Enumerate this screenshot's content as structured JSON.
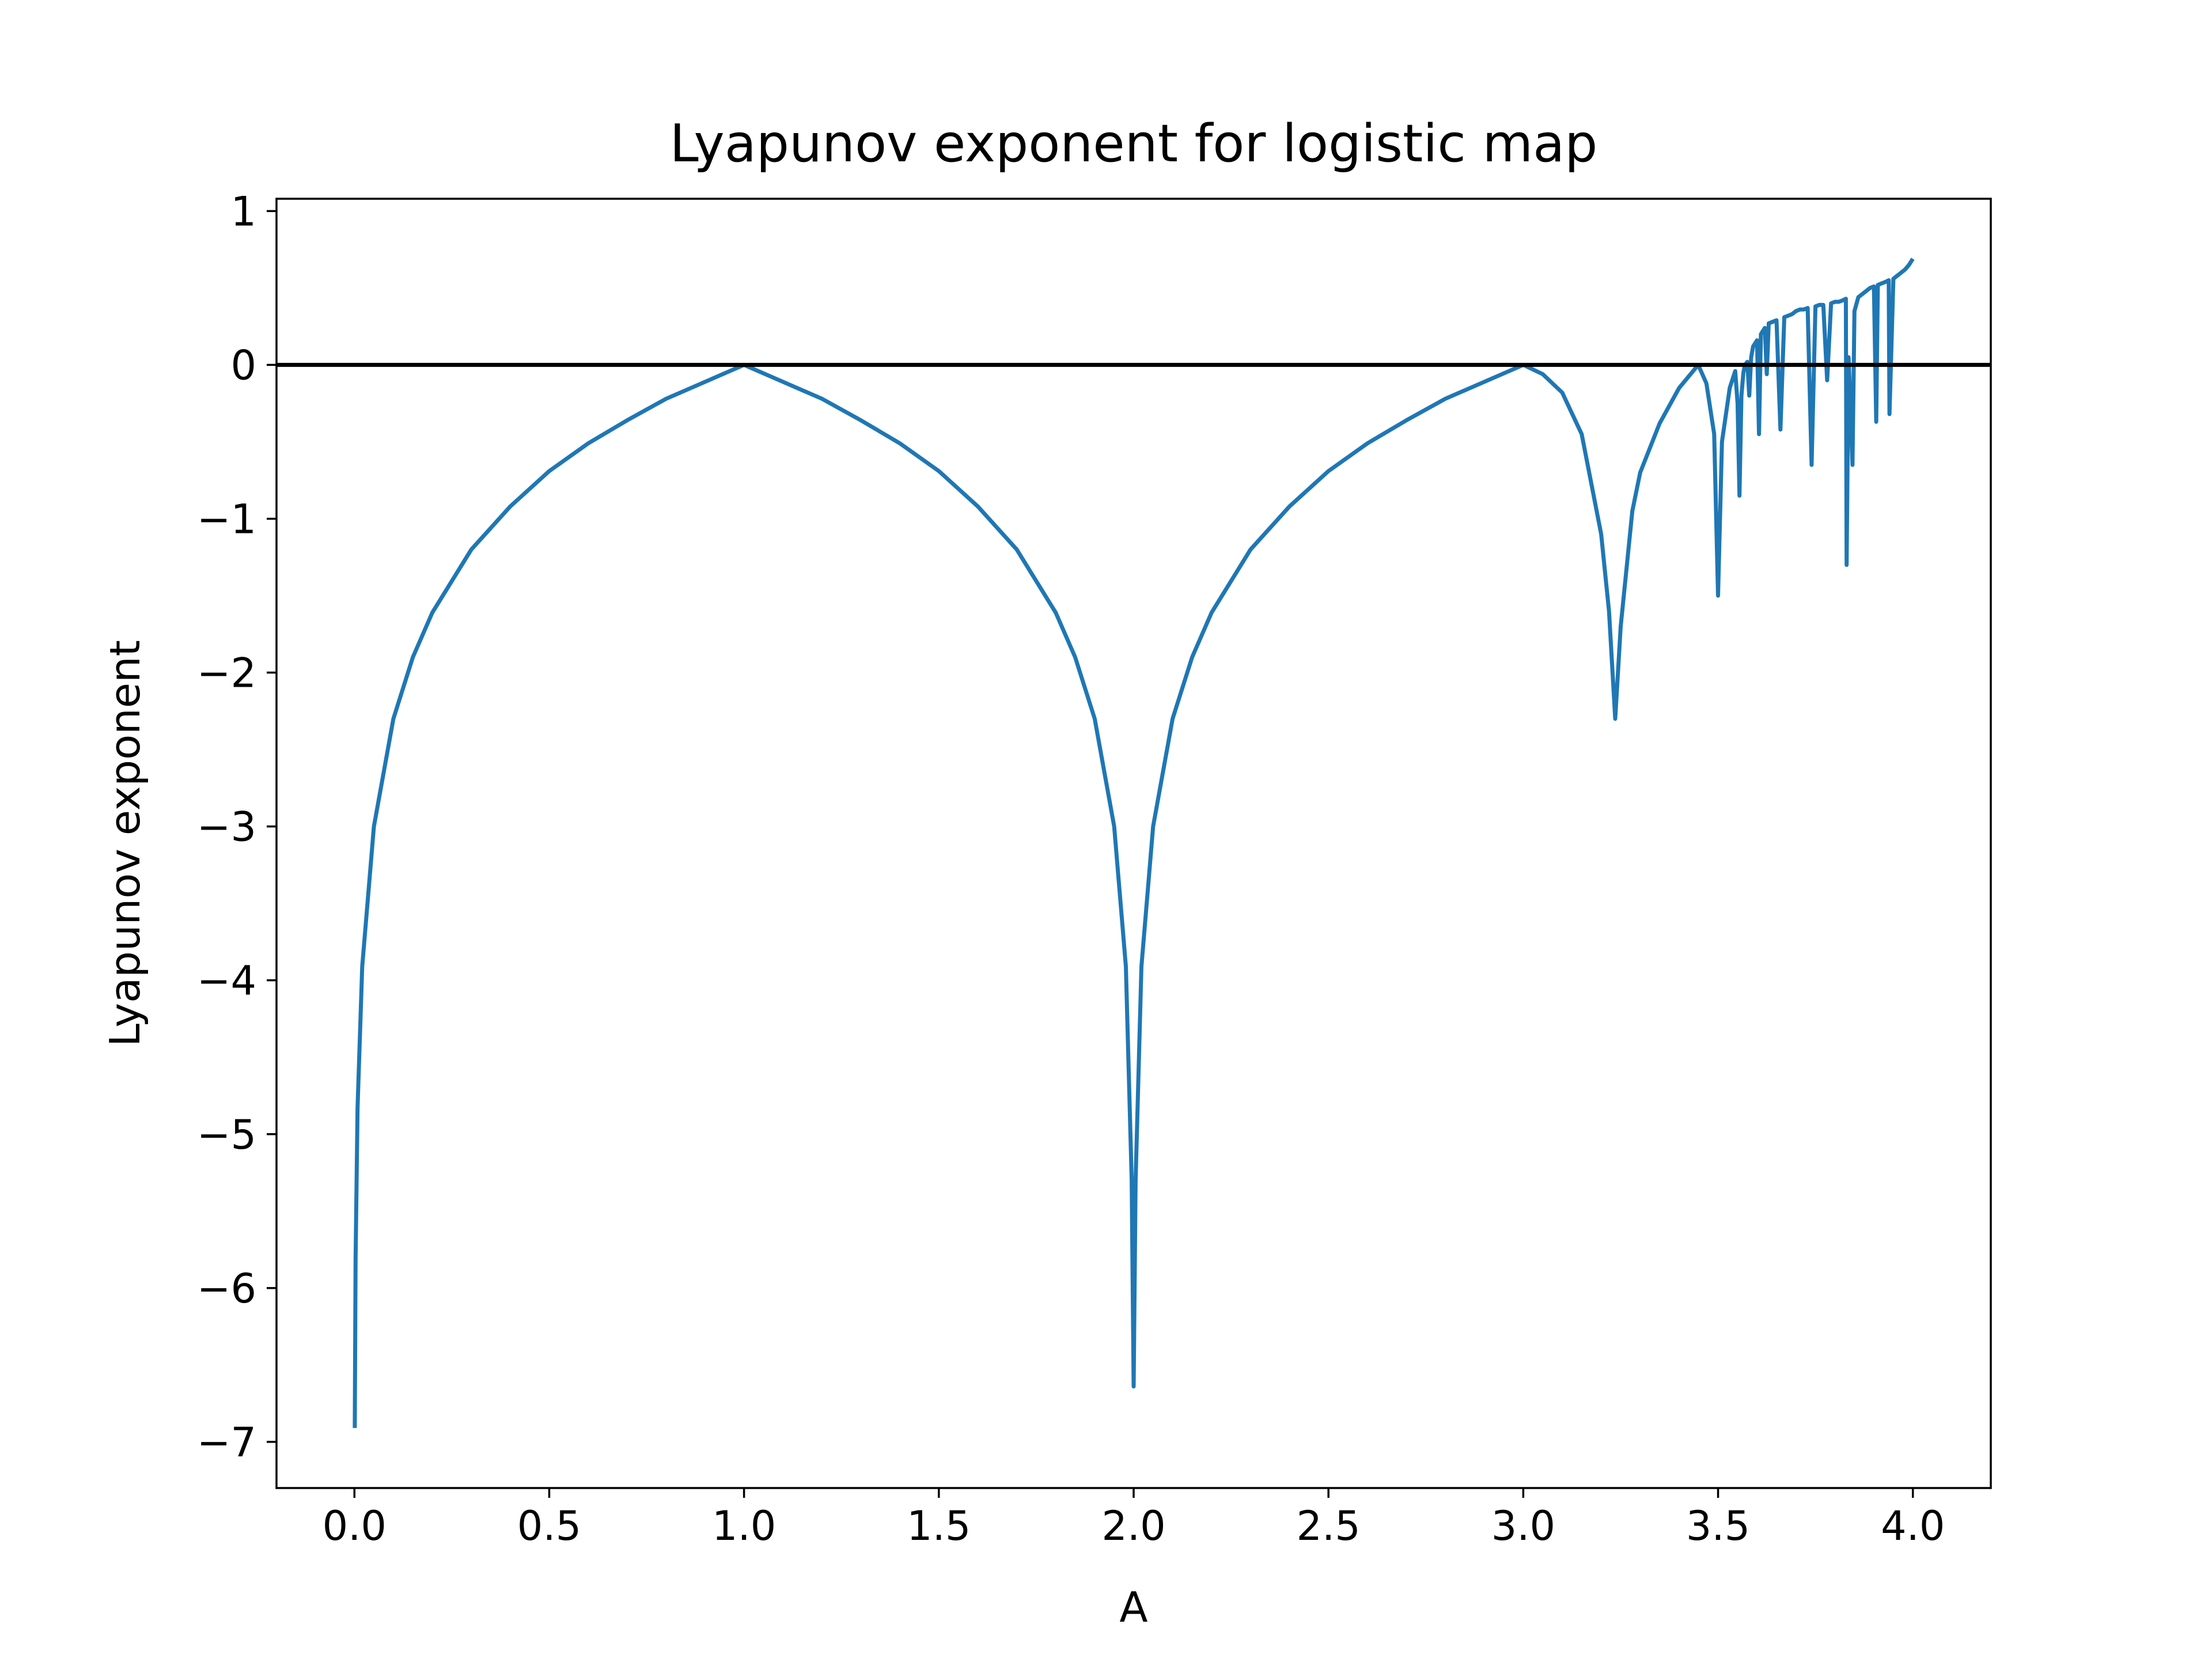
{
  "chart_data": {
    "type": "line",
    "title": "Lyapunov exponent for logistic map",
    "xlabel": "A",
    "ylabel": "Lyapunov exponent",
    "xlim": [
      -0.2,
      4.2
    ],
    "ylim": [
      -7.3,
      1.08
    ],
    "xticks": [
      "0.0",
      "0.5",
      "1.0",
      "1.5",
      "2.0",
      "2.5",
      "3.0",
      "3.5",
      "4.0"
    ],
    "yticks": [
      "1",
      "0",
      "−1",
      "−2",
      "−3",
      "−4",
      "−5",
      "−6",
      "−7"
    ],
    "grid": false,
    "line_color": "#1f77b4",
    "reference_line": {
      "y": 0,
      "color": "#000000"
    },
    "series": [
      {
        "x": [
          0.001,
          0.003,
          0.008,
          0.02,
          0.05,
          0.1,
          0.15,
          0.2,
          0.3,
          0.4,
          0.5,
          0.6,
          0.7,
          0.8,
          0.9,
          1.0,
          1.1,
          1.2,
          1.3,
          1.4,
          1.5,
          1.6,
          1.7,
          1.8,
          1.85,
          1.9,
          1.95,
          1.98,
          1.995,
          2.0,
          2.005,
          2.02,
          2.05,
          2.1,
          2.15,
          2.2,
          2.3,
          2.4,
          2.5,
          2.6,
          2.7,
          2.8,
          2.9,
          3.0,
          3.05,
          3.1,
          3.15,
          3.2,
          3.22,
          3.236,
          3.25,
          3.28,
          3.3,
          3.35,
          3.4,
          3.449,
          3.47,
          3.49,
          3.5,
          3.51,
          3.53,
          3.544,
          3.55,
          3.555,
          3.56,
          3.565,
          3.569,
          3.575,
          3.58,
          3.585,
          3.59,
          3.6,
          3.605,
          3.61,
          3.62,
          3.625,
          3.63,
          3.64,
          3.65,
          3.66,
          3.67,
          3.68,
          3.69,
          3.7,
          3.71,
          3.72,
          3.73,
          3.74,
          3.75,
          3.76,
          3.77,
          3.78,
          3.79,
          3.8,
          3.81,
          3.82,
          3.828,
          3.83,
          3.835,
          3.845,
          3.85,
          3.86,
          3.87,
          3.88,
          3.89,
          3.9,
          3.906,
          3.91,
          3.92,
          3.93,
          3.938,
          3.94,
          3.95,
          3.96,
          3.97,
          3.98,
          3.99,
          4.0
        ],
        "y": [
          -6.91,
          -5.81,
          -4.83,
          -3.91,
          -3.0,
          -2.3,
          -1.9,
          -1.61,
          -1.2,
          -0.92,
          -0.69,
          -0.51,
          -0.36,
          -0.22,
          -0.11,
          0.0,
          -0.11,
          -0.22,
          -0.36,
          -0.51,
          -0.69,
          -0.92,
          -1.2,
          -1.61,
          -1.9,
          -2.3,
          -3.0,
          -3.91,
          -5.3,
          -6.64,
          -5.3,
          -3.91,
          -3.0,
          -2.3,
          -1.9,
          -1.61,
          -1.2,
          -0.92,
          -0.69,
          -0.51,
          -0.36,
          -0.22,
          -0.11,
          0.0,
          -0.06,
          -0.18,
          -0.45,
          -1.1,
          -1.6,
          -2.3,
          -1.7,
          -0.95,
          -0.7,
          -0.38,
          -0.15,
          0.0,
          -0.12,
          -0.45,
          -1.5,
          -0.5,
          -0.15,
          -0.04,
          -0.25,
          -0.85,
          -0.2,
          -0.05,
          0.0,
          0.02,
          -0.2,
          0.05,
          0.12,
          0.16,
          -0.45,
          0.2,
          0.24,
          -0.06,
          0.27,
          0.28,
          0.29,
          -0.42,
          0.31,
          0.32,
          0.33,
          0.35,
          0.36,
          0.36,
          0.37,
          -0.65,
          0.38,
          0.39,
          0.39,
          -0.1,
          0.4,
          0.41,
          0.41,
          0.42,
          0.43,
          -1.3,
          0.05,
          -0.65,
          0.35,
          0.44,
          0.46,
          0.48,
          0.5,
          0.51,
          -0.37,
          0.52,
          0.53,
          0.54,
          0.55,
          -0.32,
          0.56,
          0.58,
          0.6,
          0.62,
          0.65,
          0.69
        ]
      }
    ]
  }
}
